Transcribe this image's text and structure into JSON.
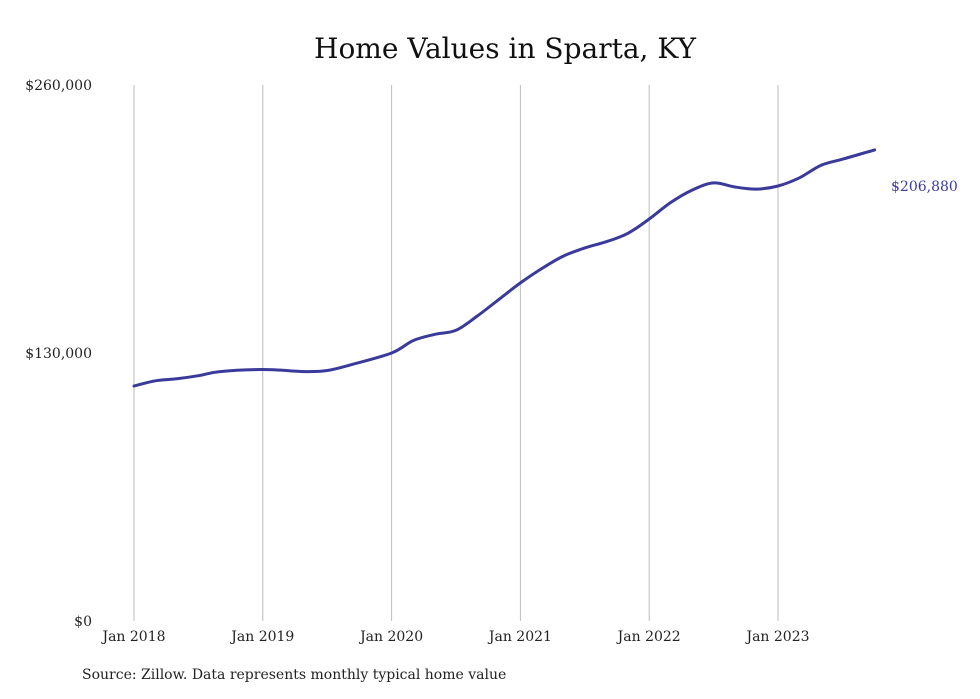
{
  "chart_data": {
    "type": "line",
    "title": "Home Values in Sparta, KY",
    "xlabel": "",
    "ylabel": "",
    "ylim": [
      0,
      260000
    ],
    "y_ticks": [
      0,
      130000,
      260000
    ],
    "y_tick_labels": [
      "$0",
      "$130,000",
      "$260,000"
    ],
    "x_ticks": [
      "2018-01",
      "2019-01",
      "2020-01",
      "2021-01",
      "2022-01",
      "2023-01"
    ],
    "x_tick_labels": [
      "Jan 2018",
      "Jan 2019",
      "Jan 2020",
      "Jan 2021",
      "Jan 2022",
      "Jan 2023"
    ],
    "grid": "vertical",
    "line_color": "#3a3a9a",
    "end_label": "$206,880",
    "series": [
      {
        "x": [
          "2018-01",
          "2018-03",
          "2018-05",
          "2018-07",
          "2018-09",
          "2019-01",
          "2019-05",
          "2019-07",
          "2019-09",
          "2020-01",
          "2020-03",
          "2020-05",
          "2020-07",
          "2020-09",
          "2020-11",
          "2021-01",
          "2021-03",
          "2021-05",
          "2021-07",
          "2021-09",
          "2021-11",
          "2022-01",
          "2022-03",
          "2022-05",
          "2022-07",
          "2022-09",
          "2022-11",
          "2023-01",
          "2023-03",
          "2023-05",
          "2023-07",
          "2023-09",
          "2023-10"
        ],
        "values": [
          114000,
          116500,
          117500,
          119000,
          121000,
          122000,
          121000,
          121500,
          124000,
          130000,
          136000,
          139000,
          141000,
          148000,
          156000,
          164000,
          171000,
          177000,
          181000,
          184000,
          188000,
          195000,
          203000,
          209000,
          212500,
          210500,
          209500,
          211000,
          215000,
          221000,
          224000,
          227000,
          206880
        ]
      }
    ]
  },
  "source_note": "Source: Zillow. Data represents monthly typical home value"
}
